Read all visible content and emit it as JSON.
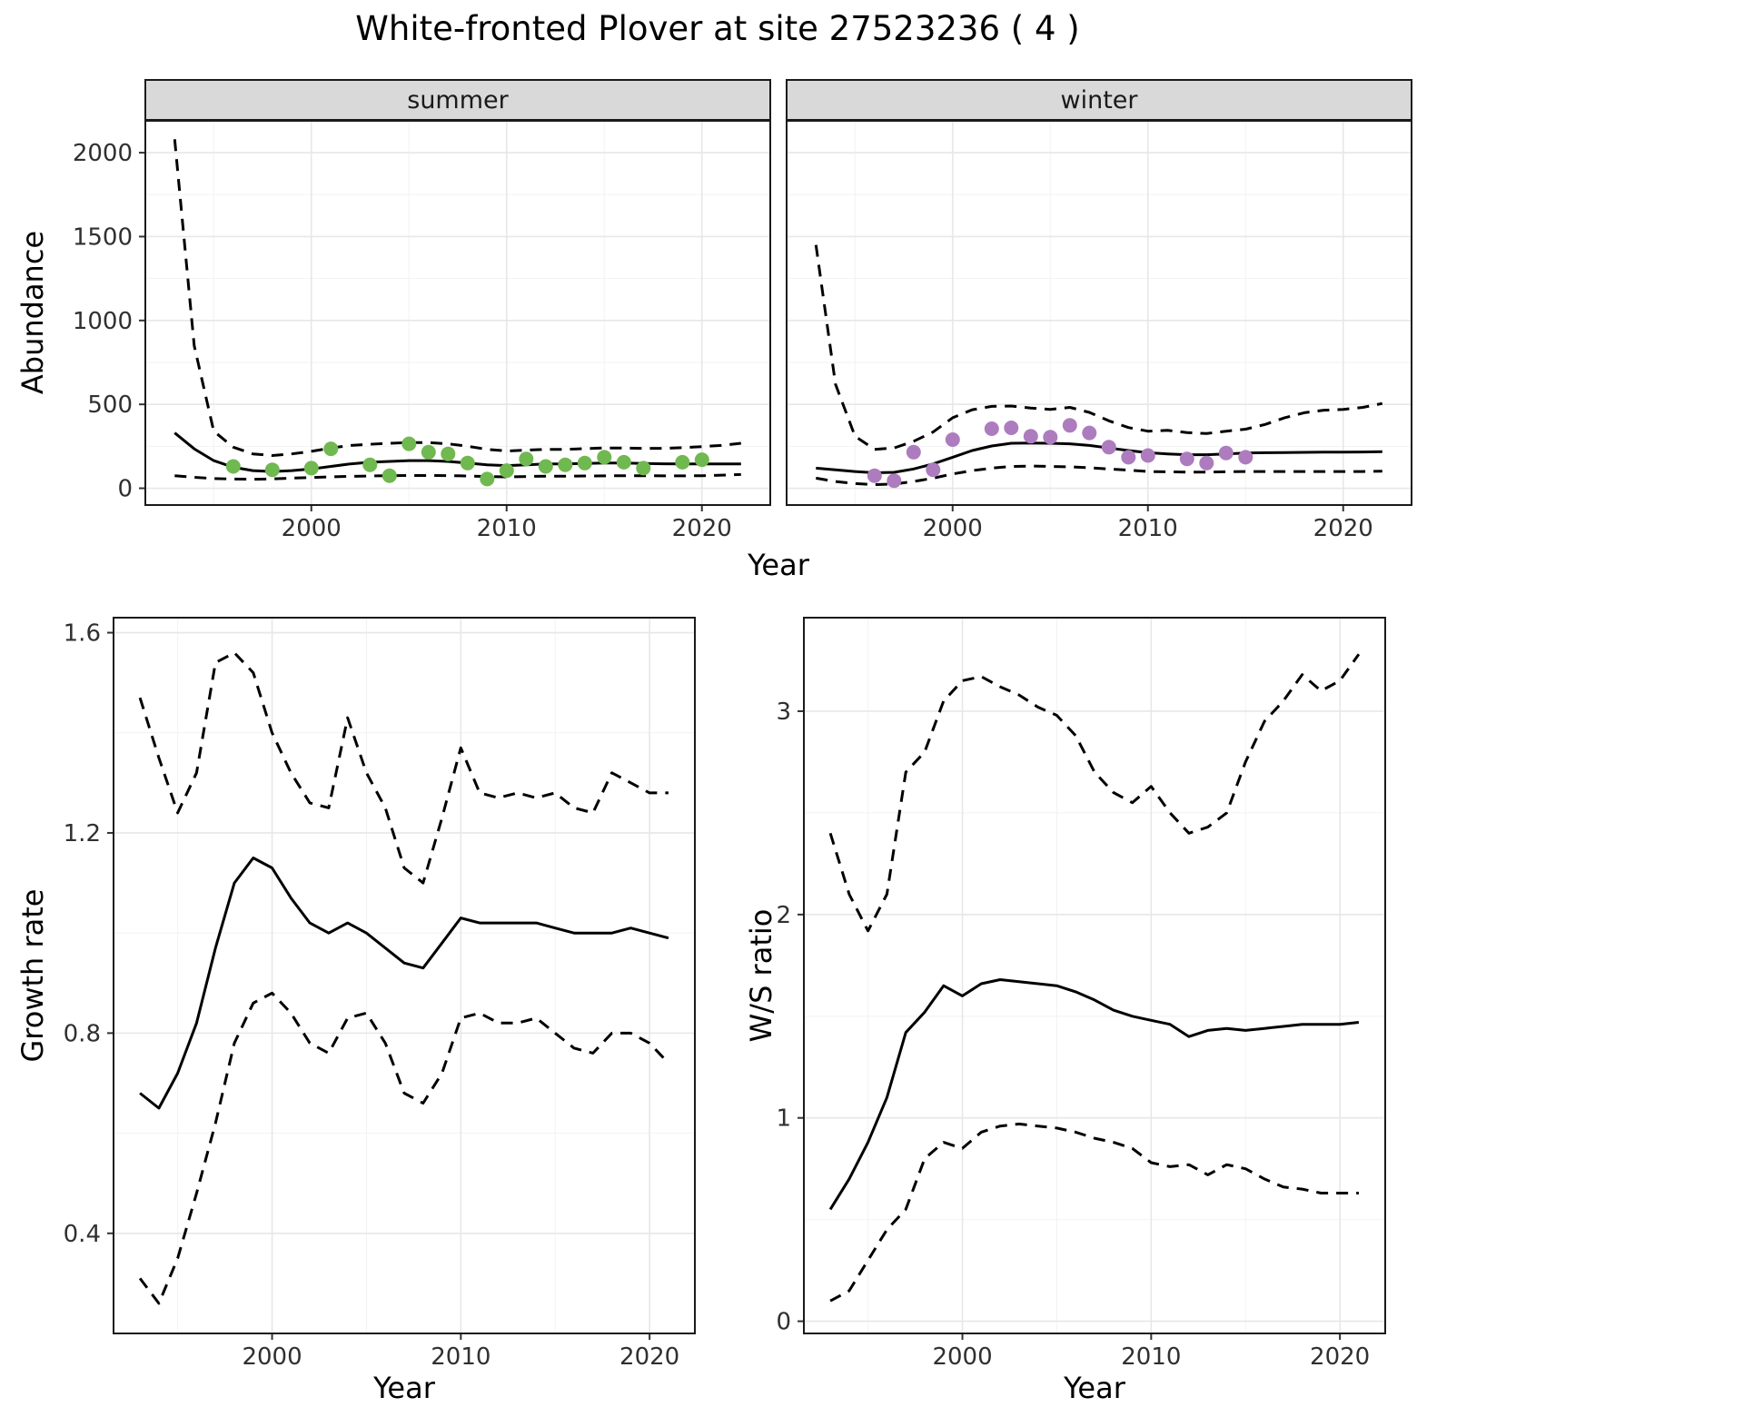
{
  "figure": {
    "title": "White-fronted Plover at site 27523236 ( 4 )",
    "background": "#ffffff",
    "line_color": "#000000",
    "tick_color": "#303030",
    "grid_major_color": "#e7e7e7",
    "grid_minor_color": "#f2f2f2",
    "panel_border_color": "#1a1a1a",
    "strip_fill": "#d9d9d9",
    "point_colors": {
      "summer": "#70b850",
      "winter": "#ad7cbe"
    }
  },
  "chart_data": [
    {
      "id": "abundance-summer",
      "type": "line",
      "facet": "summer",
      "xlabel": "Year",
      "ylabel": "Abundance",
      "grid": true,
      "xlim": [
        1991.5,
        2023.5
      ],
      "ylim": [
        -100,
        2190
      ],
      "xticks": [
        2000,
        2010,
        2020
      ],
      "yticks": [
        0,
        500,
        1000,
        1500,
        2000
      ],
      "x": [
        1993,
        1994,
        1995,
        1996,
        1997,
        1998,
        1999,
        2000,
        2001,
        2002,
        2003,
        2004,
        2005,
        2006,
        2007,
        2008,
        2009,
        2010,
        2011,
        2012,
        2013,
        2014,
        2015,
        2016,
        2017,
        2018,
        2019,
        2020,
        2021,
        2022
      ],
      "series": [
        {
          "name": "estimate",
          "style": "solid",
          "values": [
            330,
            235,
            165,
            125,
            105,
            100,
            105,
            115,
            130,
            145,
            155,
            160,
            165,
            165,
            160,
            150,
            140,
            135,
            140,
            145,
            145,
            148,
            150,
            150,
            148,
            146,
            145,
            145,
            145,
            145
          ]
        },
        {
          "name": "ci-upper",
          "style": "dashed",
          "values": [
            2080,
            850,
            340,
            245,
            205,
            195,
            205,
            220,
            240,
            255,
            262,
            268,
            272,
            272,
            265,
            250,
            232,
            222,
            227,
            232,
            232,
            236,
            240,
            240,
            238,
            238,
            242,
            248,
            255,
            268
          ]
        },
        {
          "name": "ci-lower",
          "style": "dashed",
          "values": [
            75,
            65,
            58,
            55,
            54,
            56,
            60,
            64,
            68,
            71,
            73,
            75,
            76,
            76,
            75,
            73,
            70,
            68,
            70,
            72,
            72,
            73,
            74,
            75,
            75,
            74,
            74,
            75,
            78,
            82
          ]
        }
      ],
      "points": {
        "name": "observed-counts",
        "color": "#70b850",
        "x": [
          1996,
          1998,
          2000,
          2001,
          2003,
          2004,
          2005,
          2006,
          2007,
          2008,
          2009,
          2010,
          2011,
          2012,
          2013,
          2014,
          2015,
          2016,
          2017,
          2019,
          2020
        ],
        "y": [
          130,
          110,
          120,
          235,
          140,
          75,
          265,
          215,
          205,
          150,
          55,
          105,
          175,
          130,
          140,
          150,
          185,
          155,
          120,
          155,
          170
        ]
      }
    },
    {
      "id": "abundance-winter",
      "type": "line",
      "facet": "winter",
      "xlabel": "Year",
      "ylabel": "Abundance",
      "grid": true,
      "xlim": [
        1991.5,
        2023.5
      ],
      "ylim": [
        -100,
        2190
      ],
      "xticks": [
        2000,
        2010,
        2020
      ],
      "yticks": [
        0,
        500,
        1000,
        1500,
        2000
      ],
      "x": [
        1993,
        1994,
        1995,
        1996,
        1997,
        1998,
        1999,
        2000,
        2001,
        2002,
        2003,
        2004,
        2005,
        2006,
        2007,
        2008,
        2009,
        2010,
        2011,
        2012,
        2013,
        2014,
        2015,
        2016,
        2017,
        2018,
        2019,
        2020,
        2021,
        2022
      ],
      "series": [
        {
          "name": "estimate",
          "style": "solid",
          "values": [
            120,
            110,
            100,
            92,
            95,
            115,
            145,
            185,
            225,
            252,
            268,
            270,
            268,
            265,
            255,
            240,
            225,
            212,
            205,
            200,
            200,
            205,
            210,
            212,
            213,
            214,
            215,
            215,
            216,
            218
          ]
        },
        {
          "name": "ci-upper",
          "style": "dashed",
          "values": [
            1450,
            620,
            310,
            232,
            240,
            280,
            335,
            420,
            468,
            488,
            490,
            478,
            470,
            482,
            452,
            402,
            362,
            340,
            345,
            332,
            326,
            340,
            352,
            380,
            420,
            450,
            465,
            470,
            482,
            505
          ]
        },
        {
          "name": "ci-lower",
          "style": "dashed",
          "values": [
            60,
            40,
            28,
            22,
            25,
            40,
            60,
            85,
            105,
            120,
            130,
            132,
            130,
            128,
            122,
            115,
            108,
            100,
            98,
            96,
            96,
            98,
            100,
            100,
            100,
            100,
            100,
            100,
            100,
            102
          ]
        }
      ],
      "points": {
        "name": "observed-counts",
        "color": "#ad7cbe",
        "x": [
          1996,
          1997,
          1998,
          1999,
          2000,
          2002,
          2003,
          2004,
          2005,
          2006,
          2007,
          2008,
          2009,
          2010,
          2012,
          2013,
          2014,
          2015
        ],
        "y": [
          75,
          45,
          215,
          110,
          290,
          355,
          360,
          310,
          305,
          375,
          330,
          245,
          185,
          195,
          175,
          150,
          210,
          185
        ]
      }
    },
    {
      "id": "growth-rate",
      "type": "line",
      "xlabel": "Year",
      "ylabel": "Growth rate",
      "grid": true,
      "xlim": [
        1991.6,
        2022.4
      ],
      "ylim": [
        0.2,
        1.63
      ],
      "xticks": [
        2000,
        2010,
        2020
      ],
      "yticks": [
        0.4,
        0.8,
        1.2,
        1.6
      ],
      "x": [
        1993,
        1994,
        1995,
        1996,
        1997,
        1998,
        1999,
        2000,
        2001,
        2002,
        2003,
        2004,
        2005,
        2006,
        2007,
        2008,
        2009,
        2010,
        2011,
        2012,
        2013,
        2014,
        2015,
        2016,
        2017,
        2018,
        2019,
        2020,
        2021
      ],
      "series": [
        {
          "name": "estimate",
          "style": "solid",
          "values": [
            0.68,
            0.65,
            0.72,
            0.82,
            0.97,
            1.1,
            1.15,
            1.13,
            1.07,
            1.02,
            1.0,
            1.02,
            1.0,
            0.97,
            0.94,
            0.93,
            0.98,
            1.03,
            1.02,
            1.02,
            1.02,
            1.02,
            1.01,
            1.0,
            1.0,
            1.0,
            1.01,
            1.0,
            0.99
          ]
        },
        {
          "name": "ci-upper",
          "style": "dashed",
          "values": [
            1.47,
            1.35,
            1.24,
            1.32,
            1.54,
            1.56,
            1.52,
            1.4,
            1.32,
            1.26,
            1.25,
            1.43,
            1.32,
            1.25,
            1.13,
            1.1,
            1.23,
            1.37,
            1.28,
            1.27,
            1.28,
            1.27,
            1.28,
            1.25,
            1.24,
            1.32,
            1.3,
            1.28,
            1.28
          ]
        },
        {
          "name": "ci-lower",
          "style": "dashed",
          "values": [
            0.31,
            0.26,
            0.35,
            0.48,
            0.62,
            0.78,
            0.86,
            0.88,
            0.84,
            0.78,
            0.76,
            0.83,
            0.84,
            0.78,
            0.68,
            0.66,
            0.72,
            0.83,
            0.84,
            0.82,
            0.82,
            0.83,
            0.8,
            0.77,
            0.76,
            0.8,
            0.8,
            0.78,
            0.74
          ]
        }
      ]
    },
    {
      "id": "ws-ratio",
      "type": "line",
      "xlabel": "Year",
      "ylabel": "W/S ratio",
      "grid": true,
      "xlim": [
        1991.6,
        2022.4
      ],
      "ylim": [
        -0.06,
        3.46
      ],
      "xticks": [
        2000,
        2010,
        2020
      ],
      "yticks": [
        0,
        1,
        2,
        3
      ],
      "x": [
        1993,
        1994,
        1995,
        1996,
        1997,
        1998,
        1999,
        2000,
        2001,
        2002,
        2003,
        2004,
        2005,
        2006,
        2007,
        2008,
        2009,
        2010,
        2011,
        2012,
        2013,
        2014,
        2015,
        2016,
        2017,
        2018,
        2019,
        2020,
        2021
      ],
      "series": [
        {
          "name": "estimate",
          "style": "solid",
          "values": [
            0.55,
            0.7,
            0.88,
            1.1,
            1.42,
            1.52,
            1.65,
            1.6,
            1.66,
            1.68,
            1.67,
            1.66,
            1.65,
            1.62,
            1.58,
            1.53,
            1.5,
            1.48,
            1.46,
            1.4,
            1.43,
            1.44,
            1.43,
            1.44,
            1.45,
            1.46,
            1.46,
            1.46,
            1.47
          ]
        },
        {
          "name": "ci-upper",
          "style": "dashed",
          "values": [
            2.4,
            2.1,
            1.92,
            2.1,
            2.7,
            2.8,
            3.05,
            3.15,
            3.17,
            3.12,
            3.08,
            3.02,
            2.98,
            2.88,
            2.7,
            2.6,
            2.55,
            2.63,
            2.5,
            2.4,
            2.43,
            2.5,
            2.75,
            2.95,
            3.05,
            3.18,
            3.1,
            3.15,
            3.28
          ]
        },
        {
          "name": "ci-lower",
          "style": "dashed",
          "values": [
            0.1,
            0.15,
            0.3,
            0.45,
            0.55,
            0.8,
            0.88,
            0.85,
            0.93,
            0.96,
            0.97,
            0.96,
            0.95,
            0.93,
            0.9,
            0.88,
            0.85,
            0.78,
            0.76,
            0.77,
            0.72,
            0.77,
            0.75,
            0.7,
            0.66,
            0.65,
            0.63,
            0.63,
            0.63
          ]
        }
      ]
    }
  ]
}
